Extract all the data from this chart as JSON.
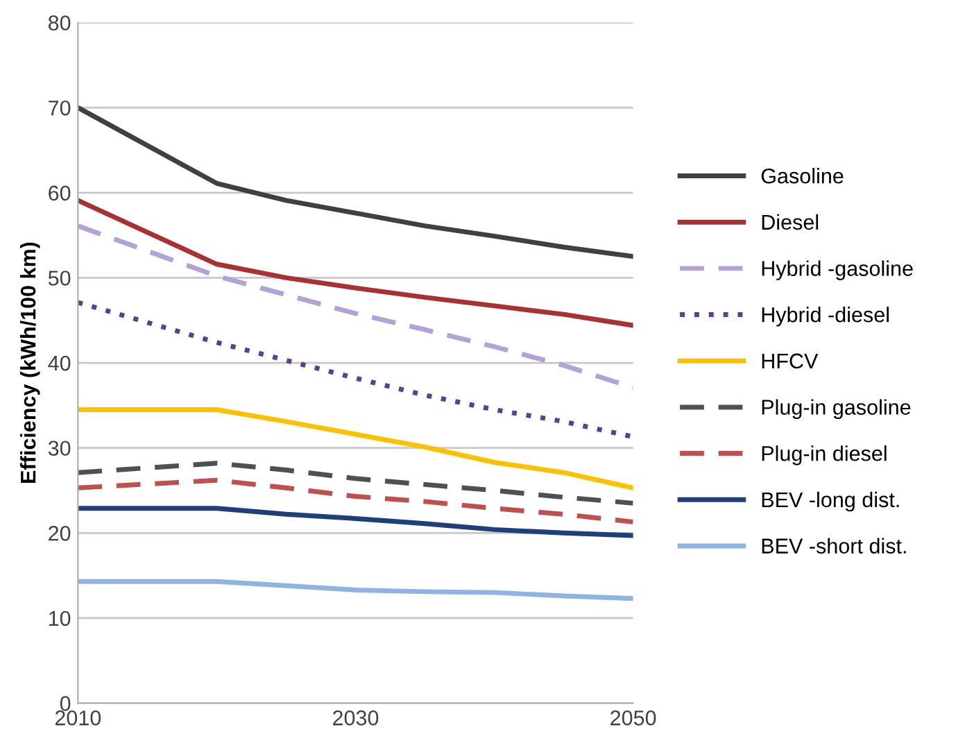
{
  "chart_data": {
    "type": "line",
    "ylabel": "Efficiency (kWh/100 km)",
    "x": [
      2010,
      2020,
      2025,
      2030,
      2035,
      2040,
      2045,
      2050
    ],
    "xlim": [
      2010,
      2050
    ],
    "xticks": [
      2010,
      2030,
      2050
    ],
    "ylim": [
      0,
      80
    ],
    "yticks": [
      0,
      10,
      20,
      30,
      40,
      50,
      60,
      70,
      80
    ],
    "grid": "y",
    "legend": "right",
    "marker": "none",
    "series": [
      {
        "name": "Gasoline",
        "color": "#404040",
        "line_style": "solid",
        "values": [
          70,
          61.1,
          59.1,
          57.6,
          56.1,
          54.9,
          53.6,
          52.5
        ]
      },
      {
        "name": "Diesel",
        "color": "#a83232",
        "line_style": "solid",
        "values": [
          59.1,
          51.6,
          50.0,
          48.8,
          47.7,
          46.7,
          45.7,
          44.4
        ]
      },
      {
        "name": "Hybrid -gasoline",
        "color": "#b3a2d6",
        "line_style": "dashed",
        "values": [
          56.1,
          50.2,
          48.0,
          45.8,
          43.9,
          41.9,
          39.7,
          37.1
        ]
      },
      {
        "name": "Hybrid -diesel",
        "color": "#5e3f8e",
        "line_style": "dotted",
        "values": [
          47.1,
          42.4,
          40.3,
          38.2,
          36.2,
          34.5,
          33.1,
          31.3
        ]
      },
      {
        "name": "HFCV",
        "color": "#ffc000",
        "line_style": "solid",
        "values": [
          34.5,
          34.5,
          33.1,
          31.6,
          30.1,
          28.3,
          27.1,
          25.3
        ]
      },
      {
        "name": "Plug-in gasoline",
        "color": "#505050",
        "line_style": "dashed",
        "values": [
          27.1,
          28.2,
          27.4,
          26.4,
          25.7,
          25.0,
          24.2,
          23.5
        ]
      },
      {
        "name": "Plug-in diesel",
        "color": "#c0504d",
        "line_style": "dashed",
        "values": [
          25.3,
          26.2,
          25.3,
          24.3,
          23.7,
          22.9,
          22.2,
          21.3
        ]
      },
      {
        "name": "BEV -long dist.",
        "color": "#1f3f7a",
        "line_style": "solid",
        "values": [
          22.9,
          22.9,
          22.2,
          21.7,
          21.1,
          20.4,
          20.0,
          19.7
        ]
      },
      {
        "name": "BEV -short dist.",
        "color": "#8fb4e3",
        "line_style": "solid",
        "values": [
          14.3,
          14.3,
          13.8,
          13.3,
          13.1,
          13.0,
          12.6,
          12.3
        ]
      }
    ]
  }
}
